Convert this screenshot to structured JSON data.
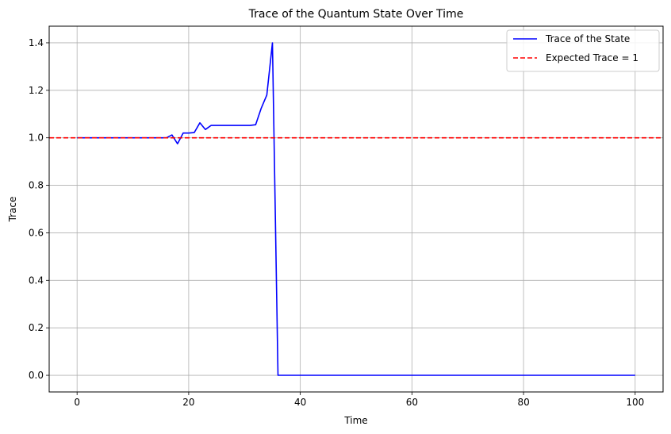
{
  "chart_data": {
    "type": "line",
    "title": "Trace of the Quantum State Over Time",
    "xlabel": "Time",
    "ylabel": "Trace",
    "xlim": [
      -5,
      105
    ],
    "ylim": [
      -0.07,
      1.47
    ],
    "xticks": [
      0,
      20,
      40,
      60,
      80,
      100
    ],
    "xtick_labels": [
      "0",
      "20",
      "40",
      "60",
      "80",
      "100"
    ],
    "yticks": [
      0.0,
      0.2,
      0.4,
      0.6,
      0.8,
      1.0,
      1.2,
      1.4
    ],
    "ytick_labels": [
      "0.0",
      "0.2",
      "0.4",
      "0.6",
      "0.8",
      "1.0",
      "1.2",
      "1.4"
    ],
    "grid": true,
    "legend_position": "top-right",
    "series": [
      {
        "name": "Trace of the State",
        "color": "#0000ff",
        "style": "solid",
        "x": [
          0,
          1,
          2,
          3,
          4,
          5,
          6,
          7,
          8,
          9,
          10,
          11,
          12,
          13,
          14,
          15,
          16,
          17,
          18,
          19,
          20,
          21,
          22,
          23,
          24,
          25,
          26,
          27,
          28,
          29,
          30,
          31,
          32,
          33,
          34,
          35,
          36,
          37,
          38,
          39,
          40,
          50,
          60,
          70,
          80,
          90,
          100
        ],
        "y": [
          1.0,
          1.0,
          1.0,
          1.0,
          1.0,
          1.0,
          1.0,
          1.0,
          1.0,
          1.0,
          1.0,
          1.0,
          1.0,
          1.0,
          1.0,
          1.0,
          1.0,
          1.012,
          0.975,
          1.02,
          1.02,
          1.022,
          1.063,
          1.035,
          1.052,
          1.052,
          1.052,
          1.052,
          1.052,
          1.052,
          1.052,
          1.052,
          1.055,
          1.125,
          1.18,
          1.4,
          0.0,
          0.0,
          0.0,
          0.0,
          0.0,
          0.0,
          0.0,
          0.0,
          0.0,
          0.0,
          0.0
        ]
      },
      {
        "name": "Expected Trace = 1",
        "color": "#ff0000",
        "style": "dashed",
        "hline": 1.0
      }
    ]
  }
}
